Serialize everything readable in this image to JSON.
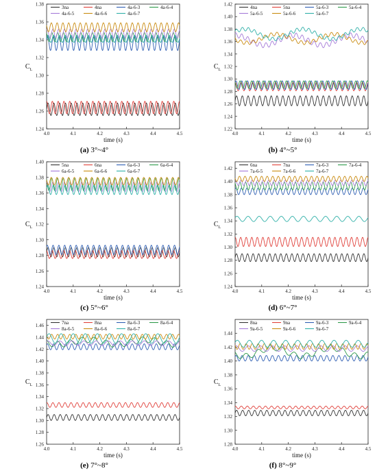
{
  "colors": {
    "black": "#333333",
    "red": "#e0403a",
    "blue": "#2f5fb3",
    "green": "#2e9a4a",
    "purple": "#a57ad8",
    "orange": "#c98b10",
    "teal": "#2fb0a8"
  },
  "chart_data": [
    {
      "type": "line",
      "caption_label": "(a)",
      "caption_text": "3°~4°",
      "xlabel": "time (s)",
      "ylabel": "C",
      "ylabel_sub": "L",
      "xlim": [
        4.0,
        4.5
      ],
      "ylim": [
        1.24,
        1.38
      ],
      "xticks": [
        4.0,
        4.1,
        4.2,
        4.3,
        4.4,
        4.5
      ],
      "xtick_labels": [
        "4.0",
        "4.1",
        "4.2",
        "4.3",
        "4.4",
        "4.5"
      ],
      "yticks": [
        1.24,
        1.26,
        1.28,
        1.3,
        1.32,
        1.34,
        1.36,
        1.38
      ],
      "ytick_labels": [
        "1.24",
        "1.26",
        "1.28",
        "1.30",
        "1.32",
        "1.34",
        "1.36",
        "1.38"
      ],
      "legend_placement": "top",
      "series": [
        {
          "name": "3na",
          "color": "#333333",
          "mean": 1.262,
          "amp": 0.007,
          "cycles": 23,
          "phase": 0.0,
          "mod": 0.0
        },
        {
          "name": "4na",
          "color": "#e0403a",
          "mean": 1.264,
          "amp": 0.007,
          "cycles": 23,
          "phase": 1.6,
          "mod": 0.0
        },
        {
          "name": "4a-6-3",
          "color": "#2f5fb3",
          "mean": 1.336,
          "amp": 0.008,
          "cycles": 23,
          "phase": 0.5,
          "mod": 0.0
        },
        {
          "name": "4a-6-4",
          "color": "#2e9a4a",
          "mean": 1.343,
          "amp": 0.005,
          "cycles": 23,
          "phase": 2.1,
          "mod": 0.0
        },
        {
          "name": "4a-6-5",
          "color": "#a57ad8",
          "mean": 1.347,
          "amp": 0.005,
          "cycles": 23,
          "phase": 1.0,
          "mod": 0.0
        },
        {
          "name": "4a-6-6",
          "color": "#c98b10",
          "mean": 1.354,
          "amp": 0.005,
          "cycles": 23,
          "phase": 2.7,
          "mod": 0.0
        },
        {
          "name": "4a-6-7",
          "color": "#2fb0a8",
          "mean": 1.341,
          "amp": 0.004,
          "cycles": 23,
          "phase": 0.2,
          "mod": 0.0
        }
      ]
    },
    {
      "type": "line",
      "caption_label": "(b)",
      "caption_text": "4°~5°",
      "xlabel": "time (s)",
      "ylabel": "C",
      "ylabel_sub": "L",
      "xlim": [
        4.0,
        4.5
      ],
      "ylim": [
        1.22,
        1.42
      ],
      "xticks": [
        4.0,
        4.1,
        4.2,
        4.3,
        4.4,
        4.5
      ],
      "xtick_labels": [
        "4.0",
        "4.1",
        "4.2",
        "4.3",
        "4.4",
        "4.5"
      ],
      "yticks": [
        1.22,
        1.24,
        1.26,
        1.28,
        1.3,
        1.32,
        1.34,
        1.36,
        1.38,
        1.4,
        1.42
      ],
      "ytick_labels": [
        "1.22",
        "1.24",
        "1.26",
        "1.28",
        "1.30",
        "1.32",
        "1.34",
        "1.36",
        "1.38",
        "1.40",
        "1.42"
      ],
      "legend_placement": "top",
      "series": [
        {
          "name": "4na",
          "color": "#333333",
          "mean": 1.265,
          "amp": 0.008,
          "cycles": 23,
          "phase": 0.0,
          "mod": 0.0
        },
        {
          "name": "5na",
          "color": "#e0403a",
          "mean": 1.288,
          "amp": 0.007,
          "cycles": 23,
          "phase": 1.4,
          "mod": 0.0
        },
        {
          "name": "5a-6-3",
          "color": "#2f5fb3",
          "mean": 1.29,
          "amp": 0.007,
          "cycles": 23,
          "phase": 0.6,
          "mod": 0.0
        },
        {
          "name": "5a-6-4",
          "color": "#2e9a4a",
          "mean": 1.291,
          "amp": 0.006,
          "cycles": 23,
          "phase": 2.4,
          "mod": 0.0
        },
        {
          "name": "5a-6-5",
          "color": "#a57ad8",
          "mean": 1.362,
          "amp": 0.004,
          "cycles": 22,
          "phase": 0.9,
          "mod": 0.008
        },
        {
          "name": "5a-6-6",
          "color": "#c98b10",
          "mean": 1.365,
          "amp": 0.003,
          "cycles": 22,
          "phase": 2.0,
          "mod": 0.007
        },
        {
          "name": "5a-6-7",
          "color": "#2fb0a8",
          "mean": 1.372,
          "amp": 0.003,
          "cycles": 22,
          "phase": 0.3,
          "mod": 0.008
        }
      ]
    },
    {
      "type": "line",
      "caption_label": "(c)",
      "caption_text": "5°~6°",
      "xlabel": "time (s)",
      "ylabel": "C",
      "ylabel_sub": "L",
      "xlim": [
        4.0,
        4.5
      ],
      "ylim": [
        1.24,
        1.4
      ],
      "xticks": [
        4.0,
        4.1,
        4.2,
        4.3,
        4.4,
        4.5
      ],
      "xtick_labels": [
        "4.0",
        "4.1",
        "4.2",
        "4.3",
        "4.4",
        "4.5"
      ],
      "yticks": [
        1.24,
        1.26,
        1.28,
        1.3,
        1.32,
        1.34,
        1.36,
        1.38,
        1.4
      ],
      "ytick_labels": [
        "1.24",
        "1.26",
        "1.28",
        "1.30",
        "1.32",
        "1.34",
        "1.36",
        "1.38",
        "1.40"
      ],
      "legend_placement": "top",
      "series": [
        {
          "name": "5na",
          "color": "#333333",
          "mean": 1.284,
          "amp": 0.006,
          "cycles": 23,
          "phase": 0.0,
          "mod": 0.0
        },
        {
          "name": "6na",
          "color": "#e0403a",
          "mean": 1.281,
          "amp": 0.005,
          "cycles": 23,
          "phase": 1.7,
          "mod": 0.0
        },
        {
          "name": "6a-6-3",
          "color": "#2f5fb3",
          "mean": 1.287,
          "amp": 0.006,
          "cycles": 23,
          "phase": 0.8,
          "mod": 0.0
        },
        {
          "name": "6a-6-4",
          "color": "#2e9a4a",
          "mean": 1.371,
          "amp": 0.008,
          "cycles": 23,
          "phase": 2.2,
          "mod": 0.0
        },
        {
          "name": "6a-6-5",
          "color": "#a57ad8",
          "mean": 1.368,
          "amp": 0.006,
          "cycles": 23,
          "phase": 1.1,
          "mod": 0.0
        },
        {
          "name": "6a-6-6",
          "color": "#c98b10",
          "mean": 1.375,
          "amp": 0.005,
          "cycles": 23,
          "phase": 2.8,
          "mod": 0.0
        },
        {
          "name": "6a-6-7",
          "color": "#2fb0a8",
          "mean": 1.364,
          "amp": 0.006,
          "cycles": 23,
          "phase": 0.4,
          "mod": 0.0
        }
      ]
    },
    {
      "type": "line",
      "caption_label": "(d)",
      "caption_text": "6°~7°",
      "xlabel": "time (s)",
      "ylabel": "C",
      "ylabel_sub": "L",
      "xlim": [
        4.0,
        4.5
      ],
      "ylim": [
        1.24,
        1.43
      ],
      "xticks": [
        4.0,
        4.1,
        4.2,
        4.3,
        4.4,
        4.5
      ],
      "xtick_labels": [
        "4.0",
        "4.1",
        "4.2",
        "4.3",
        "4.4",
        "4.5"
      ],
      "yticks": [
        1.24,
        1.26,
        1.28,
        1.3,
        1.32,
        1.34,
        1.36,
        1.38,
        1.4,
        1.42
      ],
      "ytick_labels": [
        "1.24",
        "1.26",
        "1.28",
        "1.30",
        "1.32",
        "1.34",
        "1.36",
        "1.38",
        "1.40",
        "1.42"
      ],
      "legend_placement": "top",
      "series": [
        {
          "name": "6na",
          "color": "#333333",
          "mean": 1.284,
          "amp": 0.006,
          "cycles": 24,
          "phase": 0.0,
          "mod": 0.0
        },
        {
          "name": "7na",
          "color": "#e0403a",
          "mean": 1.308,
          "amp": 0.007,
          "cycles": 24,
          "phase": 1.5,
          "mod": 0.0
        },
        {
          "name": "7a-6-3",
          "color": "#2f5fb3",
          "mean": 1.385,
          "amp": 0.005,
          "cycles": 24,
          "phase": 0.7,
          "mod": 0.0
        },
        {
          "name": "7a-6-4",
          "color": "#2e9a4a",
          "mean": 1.393,
          "amp": 0.006,
          "cycles": 24,
          "phase": 2.3,
          "mod": 0.0
        },
        {
          "name": "7a-6-5",
          "color": "#a57ad8",
          "mean": 1.398,
          "amp": 0.004,
          "cycles": 24,
          "phase": 1.2,
          "mod": 0.0
        },
        {
          "name": "7a-6-6",
          "color": "#c98b10",
          "mean": 1.404,
          "amp": 0.004,
          "cycles": 24,
          "phase": 2.9,
          "mod": 0.0
        },
        {
          "name": "7a-6-7",
          "color": "#2fb0a8",
          "mean": 1.343,
          "amp": 0.004,
          "cycles": 12,
          "phase": 0.5,
          "mod": 0.0
        }
      ]
    },
    {
      "type": "line",
      "caption_label": "(e)",
      "caption_text": "7°~8°",
      "xlabel": "time (s)",
      "ylabel": "C",
      "ylabel_sub": "L",
      "xlim": [
        4.0,
        4.5
      ],
      "ylim": [
        1.26,
        1.47
      ],
      "xticks": [
        4.0,
        4.1,
        4.2,
        4.3,
        4.4,
        4.5
      ],
      "xtick_labels": [
        "4.0",
        "4.1",
        "4.2",
        "4.3",
        "4.4",
        "4.5"
      ],
      "yticks": [
        1.26,
        1.28,
        1.3,
        1.32,
        1.34,
        1.36,
        1.38,
        1.4,
        1.42,
        1.44,
        1.46
      ],
      "ytick_labels": [
        "1.26",
        "1.28",
        "1.30",
        "1.32",
        "1.34",
        "1.36",
        "1.38",
        "1.40",
        "1.42",
        "1.44",
        "1.46"
      ],
      "legend_placement": "top",
      "series": [
        {
          "name": "7na",
          "color": "#333333",
          "mean": 1.305,
          "amp": 0.005,
          "cycles": 22,
          "phase": 0.0,
          "mod": 0.0
        },
        {
          "name": "8na",
          "color": "#e0403a",
          "mean": 1.326,
          "amp": 0.004,
          "cycles": 22,
          "phase": 1.3,
          "mod": 0.0
        },
        {
          "name": "8a-6-3",
          "color": "#2f5fb3",
          "mean": 1.424,
          "amp": 0.005,
          "cycles": 22,
          "phase": 0.6,
          "mod": 0.0
        },
        {
          "name": "8a-6-4",
          "color": "#2e9a4a",
          "mean": 1.432,
          "amp": 0.005,
          "cycles": 11,
          "phase": 2.0,
          "mod": 0.004
        },
        {
          "name": "8a-6-5",
          "color": "#a57ad8",
          "mean": 1.43,
          "amp": 0.004,
          "cycles": 11,
          "phase": 1.0,
          "mod": 0.0
        },
        {
          "name": "8a-6-6",
          "color": "#c98b10",
          "mean": 1.441,
          "amp": 0.004,
          "cycles": 22,
          "phase": 2.6,
          "mod": 0.0
        },
        {
          "name": "8a-6-7",
          "color": "#2fb0a8",
          "mean": 1.438,
          "amp": 0.008,
          "cycles": 11,
          "phase": 0.3,
          "mod": 0.0
        }
      ]
    },
    {
      "type": "line",
      "caption_label": "(f)",
      "caption_text": "8°~9°",
      "xlabel": "time (s)",
      "ylabel": "C",
      "ylabel_sub": "L",
      "xlim": [
        4.0,
        4.5
      ],
      "ylim": [
        1.28,
        1.46
      ],
      "xticks": [
        4.0,
        4.1,
        4.2,
        4.3,
        4.4,
        4.5
      ],
      "xtick_labels": [
        "4.0",
        "4.1",
        "4.2",
        "4.3",
        "4.4",
        "4.5"
      ],
      "yticks": [
        1.28,
        1.3,
        1.32,
        1.34,
        1.36,
        1.38,
        1.4,
        1.42,
        1.44
      ],
      "ytick_labels": [
        "1.28",
        "1.30",
        "1.32",
        "1.34",
        "1.36",
        "1.38",
        "1.40",
        "1.42",
        "1.44"
      ],
      "legend_placement": "top",
      "series": [
        {
          "name": "8na",
          "color": "#333333",
          "mean": 1.325,
          "amp": 0.004,
          "cycles": 22,
          "phase": 0.0,
          "mod": 0.0
        },
        {
          "name": "9na",
          "color": "#e0403a",
          "mean": 1.333,
          "amp": 0.002,
          "cycles": 22,
          "phase": 1.4,
          "mod": 0.0
        },
        {
          "name": "9a-6-3",
          "color": "#2f5fb3",
          "mean": 1.404,
          "amp": 0.004,
          "cycles": 22,
          "phase": 0.5,
          "mod": 0.0
        },
        {
          "name": "9a-6-4",
          "color": "#2e9a4a",
          "mean": 1.413,
          "amp": 0.004,
          "cycles": 11,
          "phase": 2.2,
          "mod": 0.006
        },
        {
          "name": "9a-6-5",
          "color": "#a57ad8",
          "mean": 1.418,
          "amp": 0.004,
          "cycles": 11,
          "phase": 1.0,
          "mod": 0.0
        },
        {
          "name": "9a-6-6",
          "color": "#c98b10",
          "mean": 1.421,
          "amp": 0.004,
          "cycles": 22,
          "phase": 2.7,
          "mod": 0.0
        },
        {
          "name": "9a-6-7",
          "color": "#2fb0a8",
          "mean": 1.425,
          "amp": 0.005,
          "cycles": 11,
          "phase": 0.4,
          "mod": 0.0
        }
      ]
    }
  ]
}
